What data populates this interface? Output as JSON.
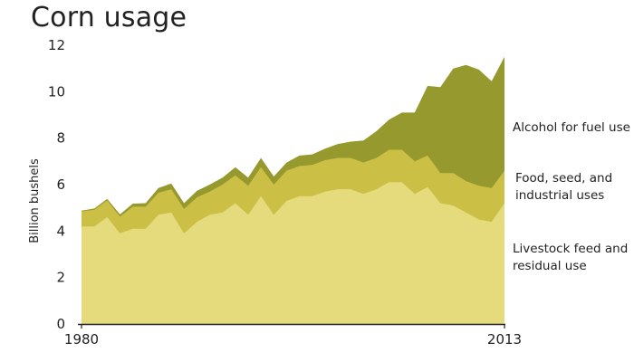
{
  "chart_data": {
    "type": "area",
    "title": "Corn usage",
    "ylabel": "Billion bushels",
    "xlabel": "",
    "ylim": [
      0,
      12
    ],
    "yticks": [
      0,
      2,
      4,
      6,
      8,
      10,
      12
    ],
    "xticks": [
      "1980",
      "2013"
    ],
    "stacked": true,
    "grid": false,
    "x": [
      1980,
      1981,
      1982,
      1983,
      1984,
      1985,
      1986,
      1987,
      1988,
      1989,
      1990,
      1991,
      1992,
      1993,
      1994,
      1995,
      1996,
      1997,
      1998,
      1999,
      2000,
      2001,
      2002,
      2003,
      2004,
      2005,
      2006,
      2007,
      2008,
      2009,
      2010,
      2011,
      2012,
      2013
    ],
    "series": [
      {
        "name": "Livestock feed and residual use",
        "color": "#e5da7c",
        "values": [
          4.2,
          4.2,
          4.6,
          3.9,
          4.1,
          4.1,
          4.7,
          4.8,
          3.9,
          4.4,
          4.7,
          4.8,
          5.2,
          4.7,
          5.5,
          4.7,
          5.3,
          5.5,
          5.5,
          5.7,
          5.8,
          5.8,
          5.6,
          5.8,
          6.1,
          6.1,
          5.6,
          5.9,
          5.2,
          5.1,
          4.8,
          4.5,
          4.4,
          5.2
        ]
      },
      {
        "name": "Food, seed, and industrial uses",
        "color": "#cbbf45",
        "values": [
          0.65,
          0.72,
          0.72,
          0.72,
          0.95,
          0.95,
          0.95,
          1.0,
          1.05,
          1.05,
          1.0,
          1.2,
          1.2,
          1.25,
          1.25,
          1.3,
          1.3,
          1.3,
          1.35,
          1.35,
          1.35,
          1.35,
          1.35,
          1.35,
          1.4,
          1.4,
          1.4,
          1.35,
          1.3,
          1.4,
          1.35,
          1.45,
          1.45,
          1.4
        ]
      },
      {
        "name": "Alcohol for fuel use",
        "color": "#969a2e",
        "values": [
          0.03,
          0.05,
          0.07,
          0.1,
          0.13,
          0.15,
          0.2,
          0.25,
          0.25,
          0.28,
          0.3,
          0.3,
          0.35,
          0.35,
          0.4,
          0.35,
          0.35,
          0.45,
          0.45,
          0.5,
          0.6,
          0.7,
          0.95,
          1.15,
          1.3,
          1.6,
          2.1,
          3.0,
          3.7,
          4.5,
          5.0,
          5.0,
          4.6,
          4.9
        ]
      }
    ]
  }
}
